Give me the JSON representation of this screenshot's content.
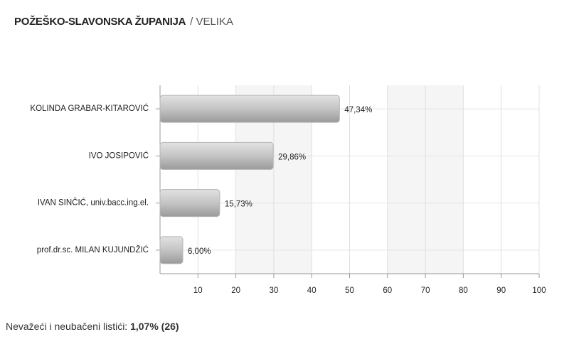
{
  "chart_data": {
    "type": "bar",
    "orientation": "horizontal",
    "title": "POŽEŠKO-SLAVONSKA ŽUPANIJA",
    "subtitle": "/ VELIKA",
    "categories": [
      "KOLINDA GRABAR-KITAROVIĆ",
      "IVO JOSIPOVIĆ",
      "IVAN SINČIĆ, univ.bacc.ing.el.",
      "prof.dr.sc. MILAN KUJUNDŽIĆ"
    ],
    "values": [
      47.34,
      29.86,
      15.73,
      6.0
    ],
    "value_labels": [
      "47,34%",
      "29,86%",
      "15,73%",
      "6,00%"
    ],
    "color": "#b5b5b5",
    "xlim": [
      0,
      100
    ],
    "xticks": [
      10,
      20,
      30,
      40,
      50,
      60,
      70,
      80,
      90,
      100
    ],
    "grid": true
  },
  "note": {
    "label": "Nevažeći i neubačeni listići:",
    "value": "1,07% (26)"
  }
}
